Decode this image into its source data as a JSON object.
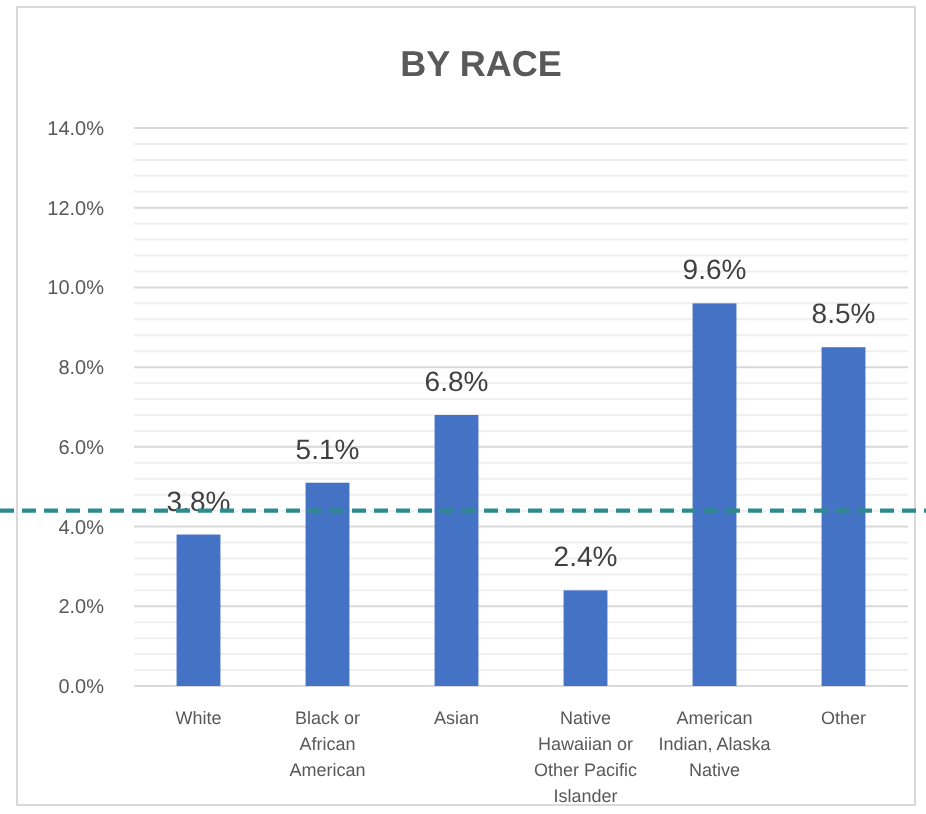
{
  "chart_data": {
    "type": "bar",
    "title": "BY RACE",
    "categories": [
      "White",
      "Black or African American",
      "Asian",
      "Native Hawaiian or Other Pacific Islander",
      "American Indian, Alaska Native",
      "Other"
    ],
    "values": [
      3.8,
      5.1,
      6.8,
      2.4,
      9.6,
      8.5
    ],
    "color": "#4472c4",
    "value_labels": [
      "3.8%",
      "5.1%",
      "6.8%",
      "2.4%",
      "9.6%",
      "8.5%"
    ],
    "ylim": [
      0,
      14
    ],
    "yticks": [
      {
        "value": 0,
        "label": "0.0%"
      },
      {
        "value": 0.4,
        "label": null
      },
      {
        "value": 0.8,
        "label": null
      },
      {
        "value": 1.2,
        "label": null
      },
      {
        "value": 1.6,
        "label": null
      },
      {
        "value": 2,
        "label": "2.0%"
      },
      {
        "value": 2.4,
        "label": null
      },
      {
        "value": 2.8,
        "label": null
      },
      {
        "value": 3.2,
        "label": null
      },
      {
        "value": 3.6,
        "label": null
      },
      {
        "value": 4,
        "label": "4.0%"
      },
      {
        "value": 4.4,
        "label": null
      },
      {
        "value": 4.8,
        "label": null
      },
      {
        "value": 5.2,
        "label": null
      },
      {
        "value": 5.6,
        "label": null
      },
      {
        "value": 6,
        "label": "6.0%"
      },
      {
        "value": 6.4,
        "label": null
      },
      {
        "value": 6.8,
        "label": null
      },
      {
        "value": 7.2,
        "label": null
      },
      {
        "value": 7.6,
        "label": null
      },
      {
        "value": 8,
        "label": "8.0%"
      },
      {
        "value": 8.4,
        "label": null
      },
      {
        "value": 8.8,
        "label": null
      },
      {
        "value": 9.2,
        "label": null
      },
      {
        "value": 9.6,
        "label": null
      },
      {
        "value": 10,
        "label": "10.0%"
      },
      {
        "value": 10.4,
        "label": null
      },
      {
        "value": 10.8,
        "label": null
      },
      {
        "value": 11.2,
        "label": null
      },
      {
        "value": 11.6,
        "label": null
      },
      {
        "value": 12,
        "label": "12.0%"
      },
      {
        "value": 12.4,
        "label": null
      },
      {
        "value": 12.8,
        "label": null
      },
      {
        "value": 13.2,
        "label": null
      },
      {
        "value": 13.6,
        "label": null
      },
      {
        "value": 14,
        "label": "14.0%"
      }
    ],
    "grid": true,
    "ref_lines": [
      {
        "axis": "y",
        "value": 4.4,
        "color": "#2e8b8b",
        "line_style": "dashed"
      }
    ]
  }
}
